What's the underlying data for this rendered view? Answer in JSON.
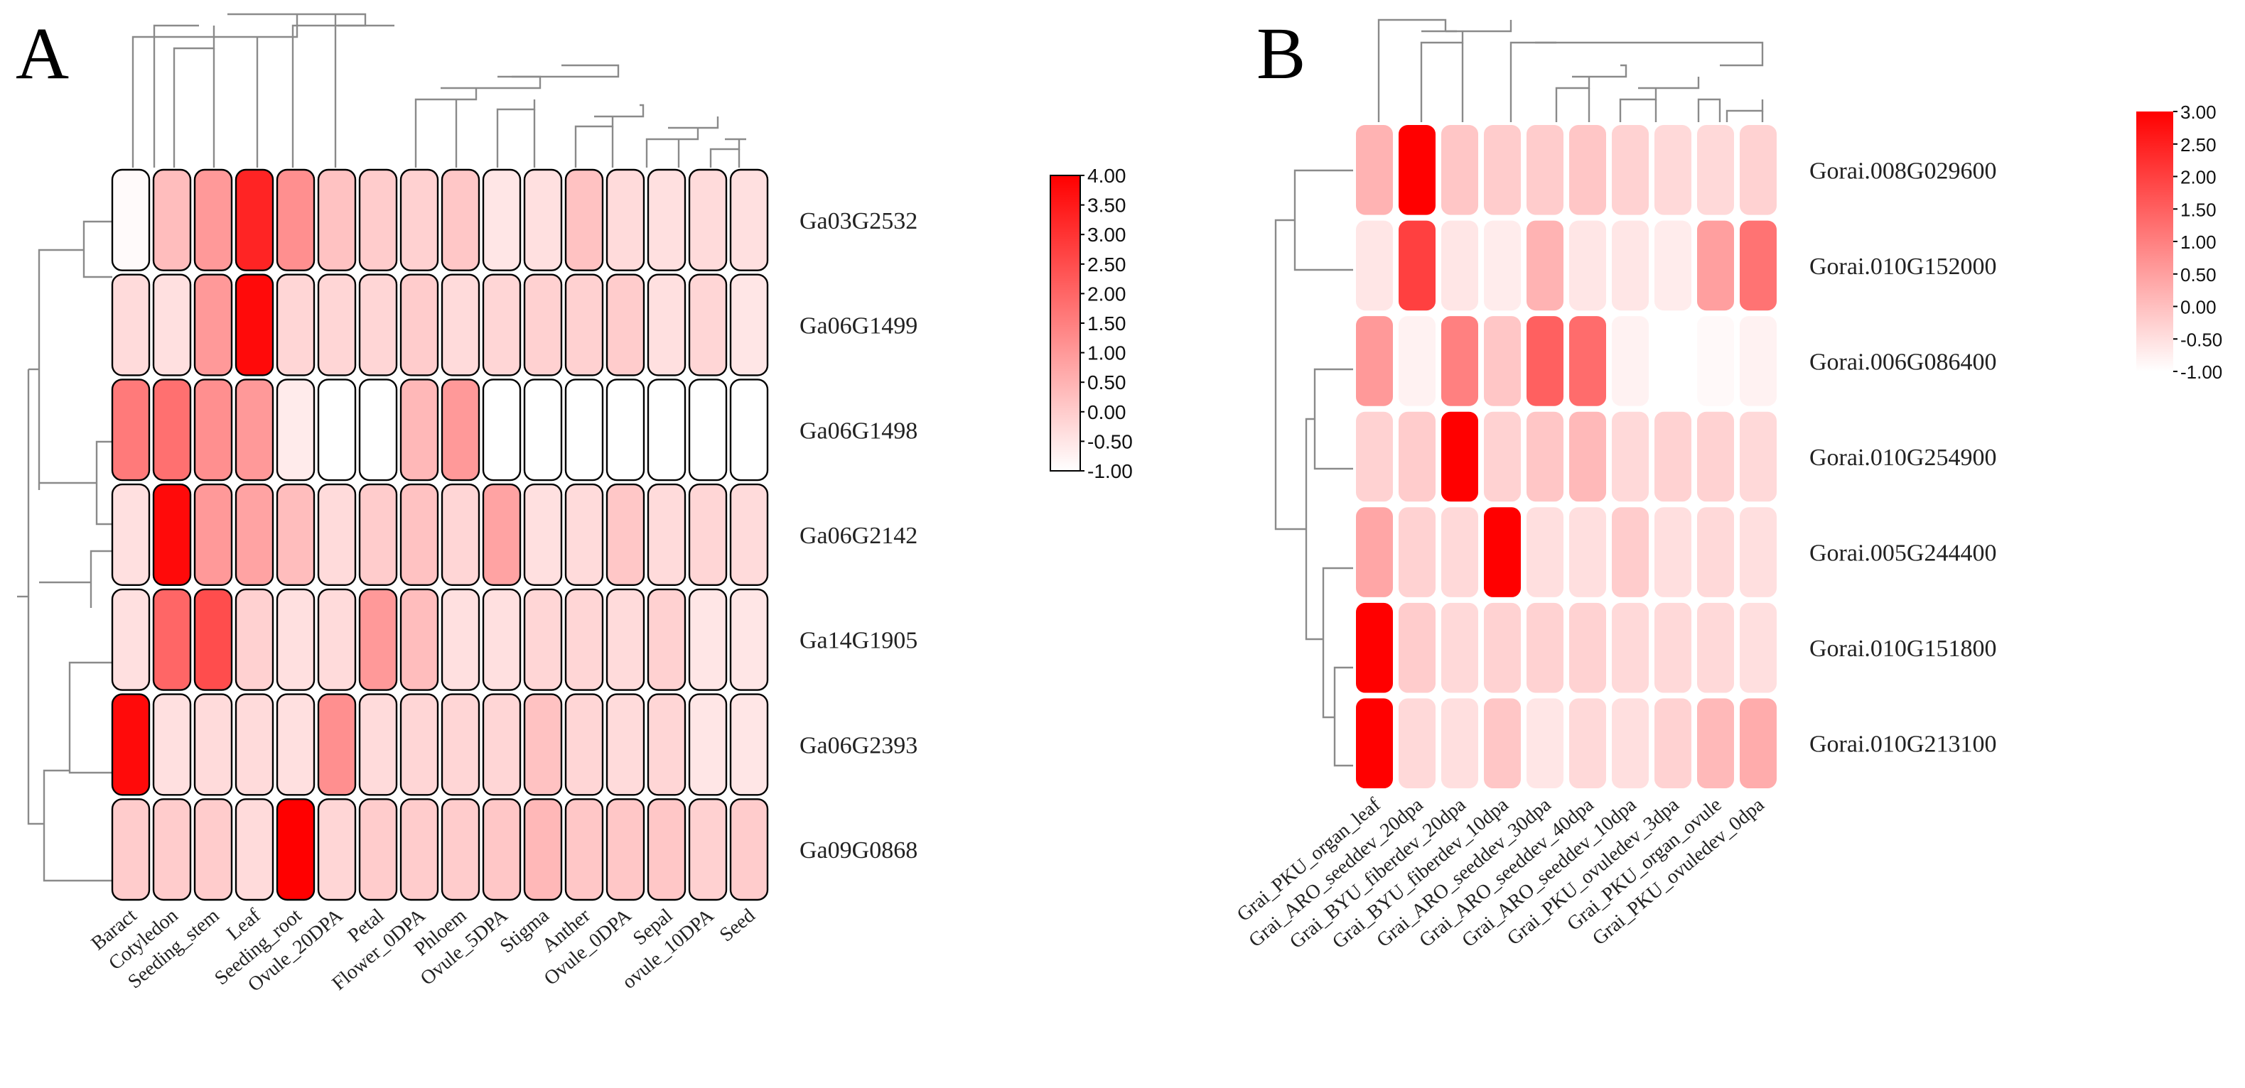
{
  "panels": {
    "a": {
      "letter": "A"
    },
    "b": {
      "letter": "B"
    }
  },
  "colors": {
    "low": "#ffffff",
    "high": "#ff0000",
    "cell_border_a": "#000000",
    "cell_border_b": "#ffffff",
    "dendrogram": "#8a8a8a"
  },
  "chart_data": [
    {
      "type": "heatmap",
      "title": "A",
      "rows": [
        "Ga03G2532",
        "Ga06G1499",
        "Ga06G1498",
        "Ga06G2142",
        "Ga14G1905",
        "Ga06G2393",
        "Ga09G0868"
      ],
      "columns": [
        "Baract",
        "Cotyledon",
        "Seeding_stem",
        "Leaf",
        "Seeding_root",
        "Ovule_20DPA",
        "Petal",
        "Flower_0DPA",
        "Phloem",
        "Ovule_5DPA",
        "Stigma",
        "Anther",
        "Ovule_0DPA",
        "Sepal",
        "ovule_10DPA",
        "Seed"
      ],
      "values": [
        [
          -0.9,
          0.3,
          1.0,
          3.3,
          1.2,
          0.2,
          0.0,
          -0.1,
          0.1,
          -0.5,
          -0.4,
          0.2,
          -0.3,
          -0.4,
          -0.3,
          -0.4
        ],
        [
          -0.3,
          -0.4,
          1.0,
          3.8,
          -0.2,
          -0.2,
          -0.2,
          0.0,
          -0.3,
          -0.2,
          -0.1,
          -0.1,
          0.0,
          -0.4,
          -0.2,
          -0.5
        ],
        [
          1.6,
          1.8,
          1.2,
          1.0,
          -0.6,
          -1.0,
          -1.0,
          0.4,
          1.0,
          -1.0,
          -1.0,
          -1.0,
          -1.0,
          -1.0,
          -1.0,
          -1.0
        ],
        [
          -0.4,
          3.8,
          1.0,
          0.8,
          0.3,
          -0.3,
          0.0,
          0.2,
          -0.2,
          0.8,
          -0.4,
          -0.3,
          0.1,
          -0.3,
          -0.2,
          -0.3
        ],
        [
          -0.4,
          2.0,
          2.5,
          -0.1,
          -0.4,
          -0.3,
          1.0,
          0.3,
          -0.4,
          -0.4,
          -0.2,
          -0.2,
          -0.3,
          -0.1,
          -0.5,
          -0.5
        ],
        [
          3.8,
          -0.4,
          -0.3,
          -0.3,
          -0.4,
          1.2,
          -0.3,
          -0.2,
          -0.2,
          -0.2,
          0.2,
          -0.2,
          -0.3,
          -0.2,
          -0.5,
          -0.5
        ],
        [
          0.0,
          0.0,
          0.0,
          -0.3,
          4.0,
          -0.2,
          0.0,
          0.0,
          0.0,
          0.1,
          0.4,
          0.1,
          0.1,
          0.1,
          -0.1,
          0.0
        ]
      ],
      "legend": {
        "ticks": [
          "4.00",
          "3.50",
          "3.00",
          "2.50",
          "2.00",
          "1.50",
          "1.00",
          "0.50",
          "0.00",
          "-0.50",
          "-1.00"
        ],
        "range": [
          -1.0,
          4.0
        ]
      }
    },
    {
      "type": "heatmap",
      "title": "B",
      "rows": [
        "Gorai.008G029600",
        "Gorai.010G152000",
        "Gorai.006G086400",
        "Gorai.010G254900",
        "Gorai.005G244400",
        "Gorai.010G151800",
        "Gorai.010G213100"
      ],
      "columns": [
        "Grai_PKU_organ_leaf",
        "Grai_ARO_seeddev_20dpa",
        "Grai_BYU_fiberdev_20dpa",
        "Grai_BYU_fiberdev_10dpa",
        "Grai_ARO_seeddev_30dpa",
        "Grai_ARO_seeddev_40dpa",
        "Grai_ARO_seeddev_10dpa",
        "Grai_PKU_ovuledev_3dpa",
        "Grai_PKU_organ_ovule",
        "Grai_PKU_ovuledev_0dpa"
      ],
      "values": [
        [
          0.2,
          3.0,
          -0.1,
          -0.2,
          -0.2,
          -0.1,
          -0.3,
          -0.4,
          -0.4,
          -0.3
        ],
        [
          -0.6,
          2.0,
          -0.6,
          -0.7,
          0.2,
          -0.6,
          -0.6,
          -0.7,
          0.5,
          1.2
        ],
        [
          0.6,
          -0.8,
          1.0,
          -0.1,
          1.5,
          1.3,
          -0.8,
          -1.0,
          -0.9,
          -0.8
        ],
        [
          -0.3,
          -0.2,
          3.0,
          -0.3,
          -0.1,
          0.1,
          -0.4,
          -0.3,
          -0.3,
          -0.4
        ],
        [
          0.4,
          -0.3,
          -0.4,
          3.0,
          -0.5,
          -0.5,
          -0.2,
          -0.5,
          -0.4,
          -0.5
        ],
        [
          3.0,
          -0.2,
          -0.4,
          -0.3,
          -0.3,
          -0.3,
          -0.4,
          -0.4,
          -0.4,
          -0.5
        ],
        [
          3.0,
          -0.4,
          -0.5,
          -0.1,
          -0.6,
          -0.4,
          -0.5,
          -0.3,
          0.1,
          0.3
        ]
      ],
      "legend": {
        "ticks": [
          "3.00",
          "2.50",
          "2.00",
          "1.50",
          "1.00",
          "0.50",
          "0.00",
          "-0.50",
          "-1.00"
        ],
        "range": [
          -1.0,
          3.0
        ]
      }
    }
  ]
}
